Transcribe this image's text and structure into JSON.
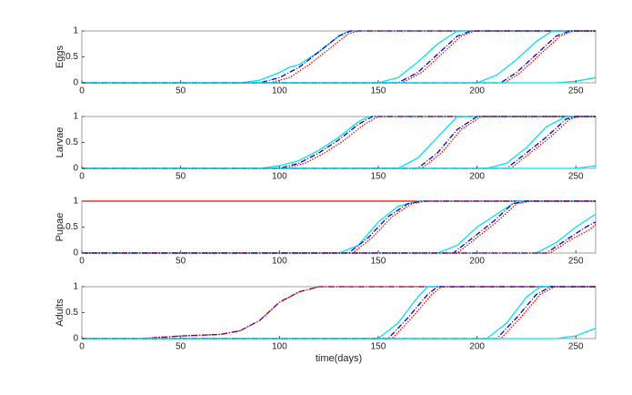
{
  "chart_data": [
    {
      "type": "line",
      "ylabel": "Eggs",
      "xlim": [
        0,
        260
      ],
      "xticks": [
        0,
        50,
        100,
        150,
        200,
        250
      ],
      "ylim": [
        0,
        1
      ],
      "yticks": [
        0,
        0.5,
        1
      ],
      "series": [
        {
          "color": "#00e5ee",
          "style": "solid",
          "x": [
            0,
            80,
            90,
            100,
            105,
            110,
            120,
            130,
            135,
            260
          ],
          "values": [
            0,
            0,
            0.05,
            0.2,
            0.3,
            0.35,
            0.6,
            0.9,
            1,
            1
          ]
        },
        {
          "color": "#0000cc",
          "style": "dashdot",
          "x": [
            0,
            90,
            100,
            110,
            120,
            130,
            136,
            260
          ],
          "values": [
            0,
            0,
            0.1,
            0.3,
            0.6,
            0.9,
            1,
            1
          ]
        },
        {
          "color": "#ff0000",
          "style": "dotted",
          "x": [
            0,
            95,
            105,
            115,
            125,
            135,
            140,
            260
          ],
          "values": [
            0,
            0,
            0.1,
            0.35,
            0.65,
            0.95,
            1,
            1
          ]
        },
        {
          "color": "#00e5ee",
          "style": "solid",
          "x": [
            0,
            150,
            160,
            170,
            180,
            190,
            260
          ],
          "values": [
            0,
            0,
            0.1,
            0.4,
            0.75,
            1,
            1
          ]
        },
        {
          "color": "#0000cc",
          "style": "dashdot",
          "x": [
            0,
            160,
            170,
            180,
            190,
            197,
            260
          ],
          "values": [
            0,
            0,
            0.2,
            0.55,
            0.9,
            1,
            1
          ]
        },
        {
          "color": "#ff0000",
          "style": "dotted",
          "x": [
            0,
            162,
            172,
            182,
            192,
            199,
            260
          ],
          "values": [
            0,
            0,
            0.2,
            0.55,
            0.9,
            1,
            1
          ]
        },
        {
          "color": "#00e5ee",
          "style": "solid",
          "x": [
            0,
            200,
            210,
            220,
            230,
            238,
            260
          ],
          "values": [
            0,
            0,
            0.15,
            0.45,
            0.8,
            1,
            1
          ]
        },
        {
          "color": "#0000cc",
          "style": "dashdot",
          "x": [
            0,
            212,
            220,
            230,
            240,
            247,
            260
          ],
          "values": [
            0,
            0,
            0.2,
            0.55,
            0.9,
            1,
            1
          ]
        },
        {
          "color": "#ff0000",
          "style": "dotted",
          "x": [
            0,
            214,
            222,
            232,
            242,
            249,
            260
          ],
          "values": [
            0,
            0,
            0.2,
            0.55,
            0.9,
            1,
            1
          ]
        },
        {
          "color": "#00e5ee",
          "style": "solid",
          "x": [
            0,
            240,
            250,
            260
          ],
          "values": [
            0,
            0,
            0.03,
            0.1
          ]
        }
      ]
    },
    {
      "type": "line",
      "ylabel": "Larvae",
      "xlim": [
        0,
        260
      ],
      "xticks": [
        0,
        50,
        100,
        150,
        200,
        250
      ],
      "ylim": [
        0,
        1
      ],
      "yticks": [
        0,
        0.5,
        1
      ],
      "series": [
        {
          "color": "#00e5ee",
          "style": "solid",
          "x": [
            0,
            90,
            100,
            110,
            120,
            130,
            140,
            145,
            260
          ],
          "values": [
            0,
            0,
            0.05,
            0.15,
            0.35,
            0.6,
            0.9,
            1,
            1
          ]
        },
        {
          "color": "#0000cc",
          "style": "dashdot",
          "x": [
            0,
            100,
            110,
            120,
            130,
            140,
            147,
            260
          ],
          "values": [
            0,
            0,
            0.1,
            0.3,
            0.55,
            0.85,
            1,
            1
          ]
        },
        {
          "color": "#ff0000",
          "style": "dotted",
          "x": [
            0,
            103,
            113,
            123,
            133,
            143,
            150,
            260
          ],
          "values": [
            0,
            0,
            0.1,
            0.3,
            0.55,
            0.85,
            1,
            1
          ]
        },
        {
          "color": "#00e5ee",
          "style": "solid",
          "x": [
            0,
            160,
            170,
            180,
            190,
            260
          ],
          "values": [
            0,
            0,
            0.2,
            0.6,
            1,
            1
          ]
        },
        {
          "color": "#0000cc",
          "style": "dashdot",
          "x": [
            0,
            170,
            180,
            190,
            200,
            260
          ],
          "values": [
            0,
            0,
            0.3,
            0.75,
            1,
            1
          ]
        },
        {
          "color": "#ff0000",
          "style": "dotted",
          "x": [
            0,
            172,
            182,
            192,
            202,
            260
          ],
          "values": [
            0,
            0,
            0.3,
            0.75,
            1,
            1
          ]
        },
        {
          "color": "#00e5ee",
          "style": "solid",
          "x": [
            0,
            205,
            215,
            225,
            235,
            245,
            260
          ],
          "values": [
            0,
            0,
            0.1,
            0.4,
            0.8,
            1,
            1
          ]
        },
        {
          "color": "#0000cc",
          "style": "dashdot",
          "x": [
            0,
            215,
            225,
            235,
            245,
            250,
            260
          ],
          "values": [
            0,
            0,
            0.3,
            0.6,
            0.95,
            1,
            1
          ]
        },
        {
          "color": "#ff0000",
          "style": "dotted",
          "x": [
            0,
            217,
            227,
            237,
            247,
            252,
            260
          ],
          "values": [
            0,
            0,
            0.3,
            0.6,
            0.95,
            1,
            1
          ]
        },
        {
          "color": "#00e5ee",
          "style": "solid",
          "x": [
            0,
            250,
            260
          ],
          "values": [
            0,
            0,
            0.05
          ]
        }
      ]
    },
    {
      "type": "line",
      "ylabel": "Pupae",
      "xlim": [
        0,
        260
      ],
      "xticks": [
        0,
        50,
        100,
        150,
        200,
        250
      ],
      "ylim": [
        0,
        1
      ],
      "yticks": [
        0,
        0.5,
        1
      ],
      "series": [
        {
          "color": "#ff0000",
          "style": "solid",
          "x": [
            0,
            260
          ],
          "values": [
            1,
            1
          ]
        },
        {
          "color": "#00e5ee",
          "style": "solid",
          "x": [
            0,
            130,
            140,
            150,
            160,
            170,
            260
          ],
          "values": [
            0,
            0,
            0.15,
            0.6,
            0.9,
            1,
            1
          ]
        },
        {
          "color": "#0000cc",
          "style": "dashdot",
          "x": [
            0,
            135,
            145,
            155,
            165,
            172,
            260
          ],
          "values": [
            0,
            0,
            0.3,
            0.7,
            0.95,
            1,
            1
          ]
        },
        {
          "color": "#ff0000",
          "style": "dotted",
          "x": [
            0,
            137,
            147,
            157,
            167,
            174,
            260
          ],
          "values": [
            0,
            0,
            0.3,
            0.7,
            0.95,
            1,
            1
          ]
        },
        {
          "color": "#00e5ee",
          "style": "solid",
          "x": [
            0,
            180,
            190,
            200,
            210,
            220,
            260
          ],
          "values": [
            0,
            0,
            0.15,
            0.5,
            0.75,
            1,
            1
          ]
        },
        {
          "color": "#0000cc",
          "style": "dashdot",
          "x": [
            0,
            188,
            198,
            208,
            218,
            225,
            260
          ],
          "values": [
            0,
            0,
            0.3,
            0.6,
            0.95,
            1,
            1
          ]
        },
        {
          "color": "#ff0000",
          "style": "dotted",
          "x": [
            0,
            190,
            200,
            210,
            220,
            227,
            260
          ],
          "values": [
            0,
            0,
            0.3,
            0.6,
            0.95,
            1,
            1
          ]
        },
        {
          "color": "#00e5ee",
          "style": "solid",
          "x": [
            0,
            230,
            240,
            250,
            260
          ],
          "values": [
            0,
            0,
            0.2,
            0.5,
            0.75
          ]
        },
        {
          "color": "#0000cc",
          "style": "dashdot",
          "x": [
            0,
            235,
            245,
            255,
            260
          ],
          "values": [
            0,
            0,
            0.25,
            0.5,
            0.6
          ]
        },
        {
          "color": "#ff0000",
          "style": "dotted",
          "x": [
            0,
            237,
            247,
            257,
            260
          ],
          "values": [
            0,
            0,
            0.25,
            0.45,
            0.55
          ]
        }
      ]
    },
    {
      "type": "line",
      "ylabel": "Adults",
      "xlabel": "time(days)",
      "xlim": [
        0,
        260
      ],
      "xticks": [
        0,
        50,
        100,
        150,
        200,
        250
      ],
      "ylim": [
        0,
        1
      ],
      "yticks": [
        0,
        0.5,
        1
      ],
      "series": [
        {
          "color": "#0000cc",
          "style": "dashdot",
          "x": [
            0,
            30,
            50,
            70,
            80,
            90,
            100,
            110,
            120,
            260
          ],
          "values": [
            0,
            0,
            0.05,
            0.08,
            0.15,
            0.35,
            0.7,
            0.9,
            1,
            1
          ]
        },
        {
          "color": "#ff0000",
          "style": "dotted",
          "x": [
            0,
            30,
            50,
            70,
            80,
            90,
            100,
            110,
            120,
            260
          ],
          "values": [
            0,
            0,
            0.05,
            0.08,
            0.15,
            0.35,
            0.7,
            0.9,
            1,
            1
          ]
        },
        {
          "color": "#00e5ee",
          "style": "solid",
          "x": [
            0,
            150,
            160,
            170,
            175,
            260
          ],
          "values": [
            0,
            0,
            0.3,
            0.8,
            1,
            1
          ]
        },
        {
          "color": "#0000cc",
          "style": "dashdot",
          "x": [
            0,
            155,
            165,
            175,
            180,
            260
          ],
          "values": [
            0,
            0,
            0.4,
            0.85,
            1,
            1
          ]
        },
        {
          "color": "#ff0000",
          "style": "dotted",
          "x": [
            0,
            157,
            167,
            177,
            182,
            260
          ],
          "values": [
            0,
            0,
            0.4,
            0.85,
            1,
            1
          ]
        },
        {
          "color": "#00e5ee",
          "style": "solid",
          "x": [
            0,
            205,
            215,
            225,
            232,
            260
          ],
          "values": [
            0,
            0,
            0.3,
            0.8,
            1,
            1
          ]
        },
        {
          "color": "#0000cc",
          "style": "dashdot",
          "x": [
            0,
            210,
            220,
            230,
            237,
            260
          ],
          "values": [
            0,
            0,
            0.4,
            0.85,
            1,
            1
          ]
        },
        {
          "color": "#ff0000",
          "style": "dotted",
          "x": [
            0,
            212,
            222,
            232,
            239,
            260
          ],
          "values": [
            0,
            0,
            0.4,
            0.85,
            1,
            1
          ]
        },
        {
          "color": "#00e5ee",
          "style": "solid",
          "x": [
            0,
            240,
            250,
            260
          ],
          "values": [
            0,
            0,
            0.05,
            0.2
          ]
        }
      ]
    }
  ]
}
